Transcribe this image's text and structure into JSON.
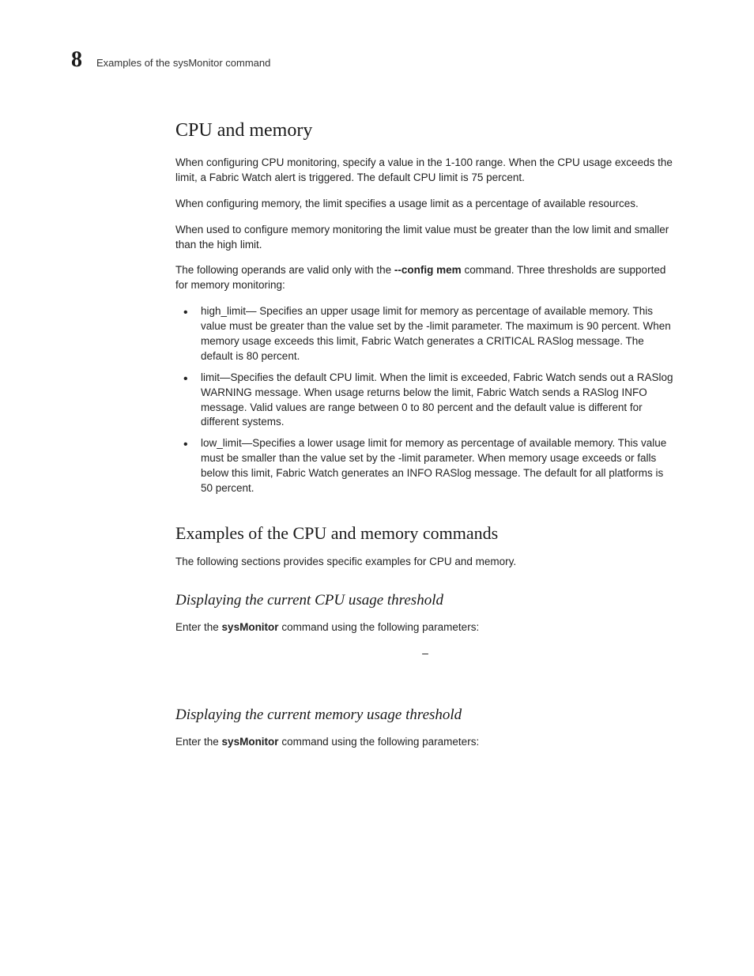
{
  "header": {
    "chapter_number": "8",
    "running_head": "Examples of the sysMonitor command"
  },
  "section1": {
    "title": "CPU and memory",
    "p1": "When configuring CPU monitoring, specify a value in the 1-100 range. When the CPU usage exceeds the limit, a Fabric Watch alert is triggered. The default CPU limit is 75 percent.",
    "p2": "When configuring memory, the limit specifies a usage limit as a percentage of available resources.",
    "p3": "When used to configure memory monitoring the limit value must be greater than the low limit and smaller than the high limit.",
    "p4_a": "The following operands are valid only with the ",
    "p4_bold": "--config mem",
    "p4_b": " command. Three thresholds are supported for memory monitoring:",
    "bullets": [
      "high_limit— Specifies an upper usage limit for memory as percentage of available memory. This value must be greater than the value set by the -limit parameter. The maximum is 90 percent. When memory usage exceeds this limit, Fabric Watch generates a CRITICAL RASlog message. The default is 80 percent.",
      "limit—Specifies the default CPU limit. When the limit is exceeded, Fabric Watch sends out a RASlog WARNING message. When usage returns below the limit, Fabric Watch sends a RASlog INFO message. Valid values are range between 0 to 80 percent and the default value is different for different systems.",
      "low_limit—Specifies a lower usage limit for memory as percentage of available memory. This value must be smaller than the value set by the -limit parameter. When memory usage exceeds or falls below this limit, Fabric Watch generates an INFO RASlog message. The default for all platforms is 50 percent."
    ]
  },
  "section2": {
    "title": "Examples of the CPU and memory commands",
    "intro": "The following sections provides specific examples for CPU and memory.",
    "sub1": {
      "title": "Displaying the current CPU usage threshold",
      "p_a": "Enter the ",
      "p_bold": "sysMonitor",
      "p_b": " command using the following parameters:",
      "dash": "–"
    },
    "sub2": {
      "title": "Displaying the current memory usage threshold",
      "p_a": "Enter the ",
      "p_bold": "sysMonitor",
      "p_b": " command using the following parameters:"
    }
  }
}
